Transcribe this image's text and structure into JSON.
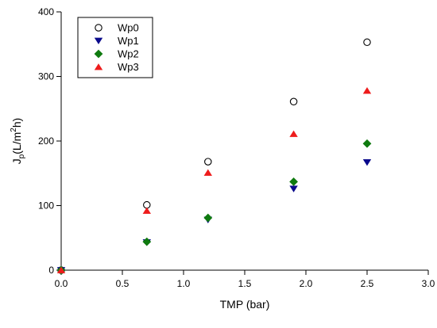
{
  "chart_data": {
    "type": "scatter",
    "title": "",
    "xlabel": "TMP (bar)",
    "ylabel": {
      "main": "J",
      "sub": "p",
      "pre": "(L/m",
      "sup": "2",
      "post": "h)"
    },
    "xlim": [
      0,
      3.0
    ],
    "ylim": [
      0,
      400
    ],
    "xticks": [
      0.0,
      0.5,
      1.0,
      1.5,
      2.0,
      2.5,
      3.0
    ],
    "xtick_labels": [
      "0.0",
      "0.5",
      "1.0",
      "1.5",
      "2.0",
      "2.5",
      "3.0"
    ],
    "yticks": [
      0,
      100,
      200,
      300,
      400
    ],
    "ytick_labels": [
      "0",
      "100",
      "200",
      "300",
      "400"
    ],
    "grid": false,
    "legend_position": "top-left",
    "series": [
      {
        "name": "Wp0",
        "marker": "circle-open",
        "color": "#000000",
        "points": [
          [
            0,
            0
          ],
          [
            0.7,
            101
          ],
          [
            1.2,
            168
          ],
          [
            1.9,
            261
          ],
          [
            2.5,
            353
          ]
        ]
      },
      {
        "name": "Wp1",
        "marker": "triangle-down",
        "color": "#0a0a8c",
        "points": [
          [
            0,
            0
          ],
          [
            0.7,
            43
          ],
          [
            1.2,
            78
          ],
          [
            1.9,
            126
          ],
          [
            2.5,
            167
          ]
        ]
      },
      {
        "name": "Wp2",
        "marker": "diamond",
        "color": "#0f7a0f",
        "points": [
          [
            0,
            0
          ],
          [
            0.7,
            44
          ],
          [
            1.2,
            81
          ],
          [
            1.9,
            137
          ],
          [
            2.5,
            196
          ]
        ]
      },
      {
        "name": "Wp3",
        "marker": "triangle-up",
        "color": "#ee1c1c",
        "points": [
          [
            0,
            0
          ],
          [
            0.7,
            92
          ],
          [
            1.2,
            151
          ],
          [
            1.9,
            211
          ],
          [
            2.5,
            278
          ]
        ]
      }
    ]
  }
}
